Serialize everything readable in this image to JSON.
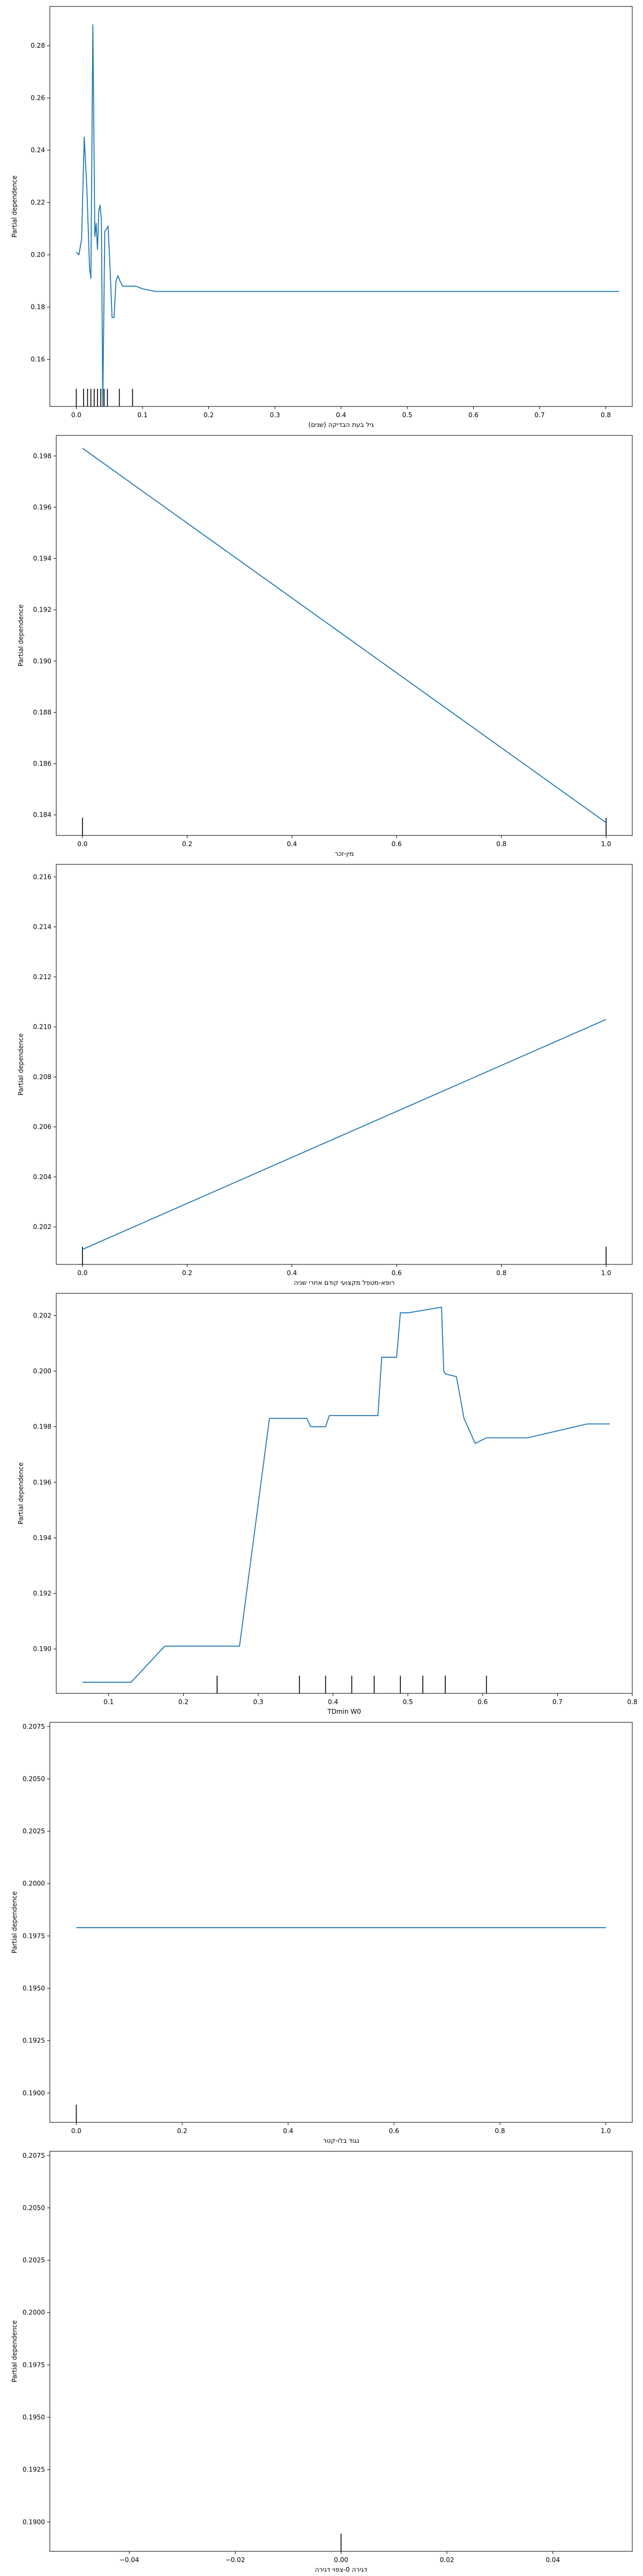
{
  "colors": {
    "line": "#1f77b4",
    "axis": "#000000",
    "rug": "#000000",
    "background": "#ffffff"
  },
  "chart_data": [
    {
      "type": "line",
      "xlabel": "גיל בעת הבדיקה (שנים)",
      "ylabel": "Partial dependence",
      "xlim": [
        -0.04,
        0.84
      ],
      "ylim": [
        0.142,
        0.295
      ],
      "xticks": [
        0.0,
        0.1,
        0.2,
        0.3,
        0.4,
        0.5,
        0.6,
        0.7,
        0.8
      ],
      "xtick_labels": [
        "0.0",
        "0.1",
        "0.2",
        "0.3",
        "0.4",
        "0.5",
        "0.6",
        "0.7",
        "0.8"
      ],
      "yticks": [
        0.16,
        0.18,
        0.2,
        0.22,
        0.24,
        0.26,
        0.28
      ],
      "ytick_labels": [
        "0.16",
        "0.18",
        "0.20",
        "0.22",
        "0.24",
        "0.26",
        "0.28"
      ],
      "x": [
        0.0,
        0.004,
        0.008,
        0.012,
        0.016,
        0.02,
        0.022,
        0.025,
        0.028,
        0.03,
        0.032,
        0.034,
        0.036,
        0.038,
        0.04,
        0.043,
        0.046,
        0.048,
        0.051,
        0.054,
        0.057,
        0.06,
        0.063,
        0.066,
        0.07,
        0.074,
        0.078,
        0.082,
        0.09,
        0.1,
        0.12,
        0.15,
        0.2,
        0.3,
        0.5,
        0.7,
        0.82
      ],
      "y": [
        0.201,
        0.2,
        0.206,
        0.245,
        0.225,
        0.195,
        0.191,
        0.288,
        0.207,
        0.212,
        0.202,
        0.217,
        0.219,
        0.213,
        0.142,
        0.209,
        0.21,
        0.211,
        0.195,
        0.176,
        0.176,
        0.19,
        0.192,
        0.19,
        0.188,
        0.188,
        0.188,
        0.188,
        0.188,
        0.187,
        0.186,
        0.186,
        0.186,
        0.186,
        0.186,
        0.186,
        0.186
      ],
      "rug": [
        0.0,
        0.011,
        0.017,
        0.022,
        0.027,
        0.032,
        0.037,
        0.042,
        0.047,
        0.065,
        0.085
      ]
    },
    {
      "type": "line",
      "xlabel": "מין-זכר",
      "ylabel": "Partial dependence",
      "xlim": [
        -0.05,
        1.05
      ],
      "ylim": [
        0.1832,
        0.1988
      ],
      "xticks": [
        0.0,
        0.2,
        0.4,
        0.6,
        0.8,
        1.0
      ],
      "xtick_labels": [
        "0.0",
        "0.2",
        "0.4",
        "0.6",
        "0.8",
        "1.0"
      ],
      "yticks": [
        0.184,
        0.186,
        0.188,
        0.19,
        0.192,
        0.194,
        0.196,
        0.198
      ],
      "ytick_labels": [
        "0.184",
        "0.186",
        "0.188",
        "0.190",
        "0.192",
        "0.194",
        "0.196",
        "0.198"
      ],
      "x": [
        0.0,
        1.0
      ],
      "y": [
        0.1983,
        0.1837
      ],
      "rug": [
        0.0,
        1.0
      ]
    },
    {
      "type": "line",
      "xlabel": "רופא-מטפל מקצועי קודם אחרי שניה",
      "ylabel": "Partial dependence",
      "xlim": [
        -0.05,
        1.05
      ],
      "ylim": [
        0.2005,
        0.2165
      ],
      "xticks": [
        0.0,
        0.2,
        0.4,
        0.6,
        0.8,
        1.0
      ],
      "xtick_labels": [
        "0.0",
        "0.2",
        "0.4",
        "0.6",
        "0.8",
        "1.0"
      ],
      "yticks": [
        0.202,
        0.204,
        0.206,
        0.208,
        0.21,
        0.212,
        0.214,
        0.216
      ],
      "ytick_labels": [
        "0.202",
        "0.204",
        "0.206",
        "0.208",
        "0.210",
        "0.212",
        "0.214",
        "0.216"
      ],
      "x": [
        0.0,
        1.0
      ],
      "y": [
        0.2011,
        0.2103
      ],
      "rug": [
        0.0,
        1.0
      ]
    },
    {
      "type": "line",
      "xlabel": "TDmin W0",
      "ylabel": "Partial dependence",
      "xlim": [
        0.03,
        0.8
      ],
      "ylim": [
        0.1884,
        0.2028
      ],
      "xticks": [
        0.1,
        0.2,
        0.3,
        0.4,
        0.5,
        0.6,
        0.7,
        0.8
      ],
      "xtick_labels": [
        "0.1",
        "0.2",
        "0.3",
        "0.4",
        "0.5",
        "0.6",
        "0.7",
        "0.8"
      ],
      "yticks": [
        0.19,
        0.192,
        0.194,
        0.196,
        0.198,
        0.2,
        0.202
      ],
      "ytick_labels": [
        "0.190",
        "0.192",
        "0.194",
        "0.196",
        "0.198",
        "0.200",
        "0.202"
      ],
      "x": [
        0.065,
        0.13,
        0.175,
        0.275,
        0.315,
        0.365,
        0.37,
        0.39,
        0.395,
        0.46,
        0.465,
        0.485,
        0.49,
        0.5,
        0.545,
        0.548,
        0.55,
        0.565,
        0.575,
        0.59,
        0.605,
        0.66,
        0.74,
        0.77
      ],
      "y": [
        0.1888,
        0.1888,
        0.1901,
        0.1901,
        0.1983,
        0.1983,
        0.198,
        0.198,
        0.1984,
        0.1984,
        0.2005,
        0.2005,
        0.2021,
        0.2021,
        0.2023,
        0.2,
        0.1999,
        0.1998,
        0.1983,
        0.1974,
        0.1976,
        0.1976,
        0.1981,
        0.1981
      ],
      "rug": [
        0.245,
        0.355,
        0.39,
        0.425,
        0.455,
        0.49,
        0.52,
        0.55,
        0.605
      ]
    },
    {
      "type": "line",
      "xlabel": "נגוד בלו-קטר",
      "ylabel": "Partial dependence",
      "xlim": [
        -0.05,
        1.05
      ],
      "ylim": [
        0.1886,
        0.2077
      ],
      "xticks": [
        0.0,
        0.2,
        0.4,
        0.6,
        0.8,
        1.0
      ],
      "xtick_labels": [
        "0.0",
        "0.2",
        "0.4",
        "0.6",
        "0.8",
        "1.0"
      ],
      "yticks": [
        0.19,
        0.1925,
        0.195,
        0.1975,
        0.2,
        0.2025,
        0.205,
        0.2075
      ],
      "ytick_labels": [
        "0.1900",
        "0.1925",
        "0.1950",
        "0.1975",
        "0.2000",
        "0.2025",
        "0.2050",
        "0.2075"
      ],
      "x": [
        0.0,
        1.0
      ],
      "y": [
        0.1979,
        0.1979
      ],
      "rug": [
        0.0
      ]
    },
    {
      "type": "line",
      "xlabel": "דגירה 0-צפוי דגירה",
      "ylabel": "Partial dependence",
      "xlim": [
        -0.055,
        0.055
      ],
      "ylim": [
        0.1886,
        0.2077
      ],
      "xticks": [
        -0.04,
        -0.02,
        0.0,
        0.02,
        0.04
      ],
      "xtick_labels": [
        "−0.04",
        "−0.02",
        "0.00",
        "0.02",
        "0.04"
      ],
      "yticks": [
        0.19,
        0.1925,
        0.195,
        0.1975,
        0.2,
        0.2025,
        0.205,
        0.2075
      ],
      "ytick_labels": [
        "0.1900",
        "0.1925",
        "0.1950",
        "0.1975",
        "0.2000",
        "0.2025",
        "0.2050",
        "0.2075"
      ],
      "x": [],
      "y": [],
      "rug": [
        0.0
      ]
    }
  ]
}
